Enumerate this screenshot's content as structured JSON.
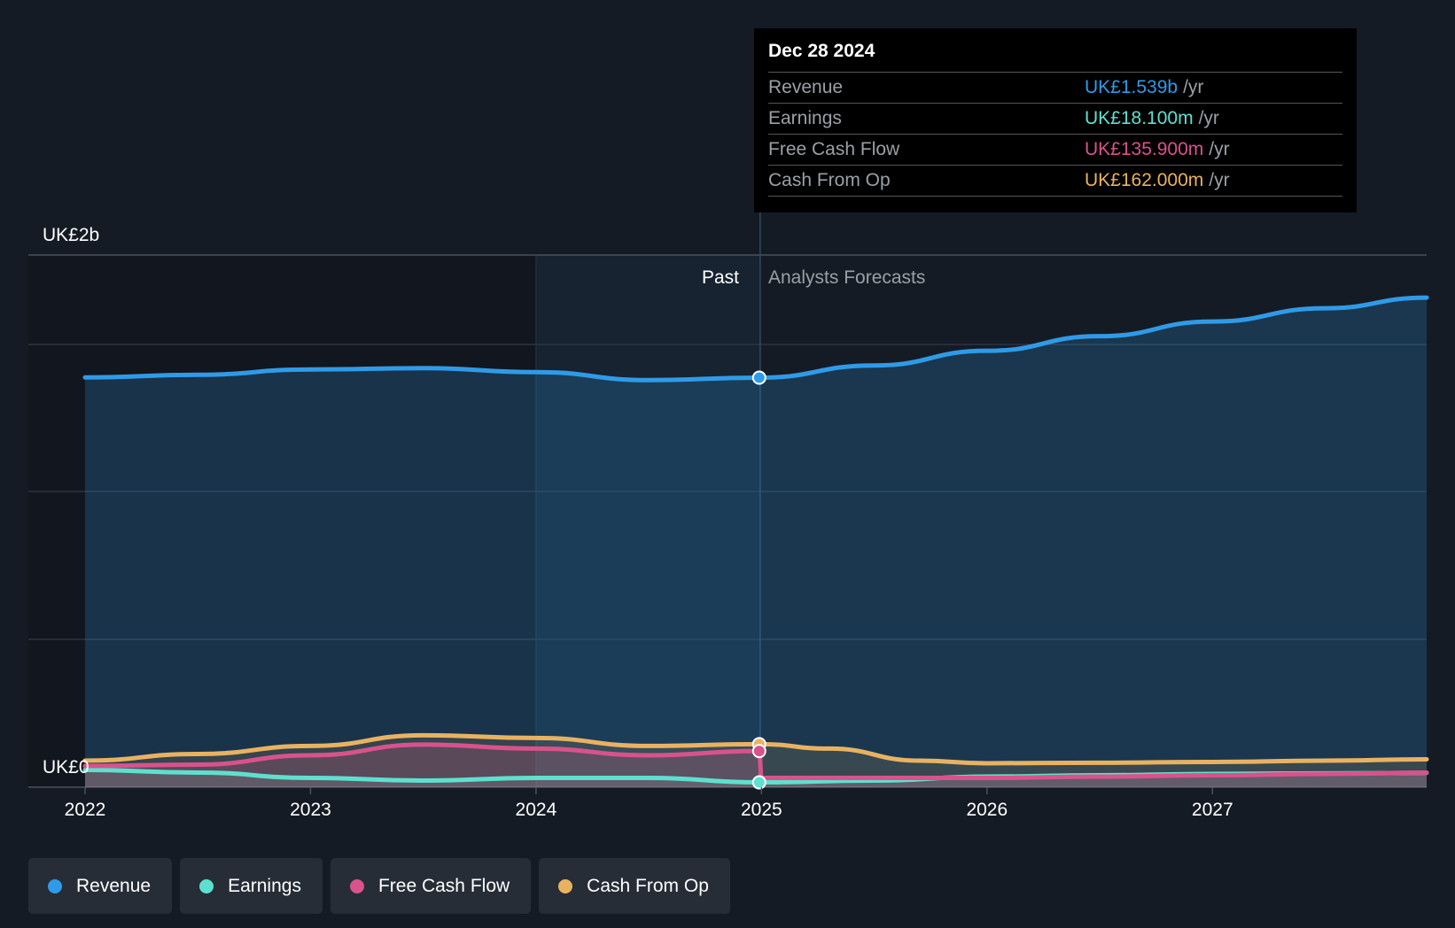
{
  "tooltip": {
    "date": "Dec 28 2024",
    "rows": [
      {
        "label": "Revenue",
        "value": "UK£1.539b",
        "unit": "/yr",
        "color": "#2f9be8"
      },
      {
        "label": "Earnings",
        "value": "UK£18.100m",
        "unit": "/yr",
        "color": "#5ee0cf"
      },
      {
        "label": "Free Cash Flow",
        "value": "UK£135.900m",
        "unit": "/yr",
        "color": "#d9528c"
      },
      {
        "label": "Cash From Op",
        "value": "UK£162.000m",
        "unit": "/yr",
        "color": "#e9b261"
      }
    ]
  },
  "chart_data": {
    "type": "line",
    "y_top_label": "UK£2b",
    "y_bottom_label": "UK£0",
    "ylim": [
      0,
      1.8
    ],
    "xlim": [
      2021.75,
      2027.95
    ],
    "x_ticks": [
      "2022",
      "2023",
      "2024",
      "2025",
      "2026",
      "2027"
    ],
    "past_label": "Past",
    "forecast_label": "Analysts Forecasts",
    "divider_x": 2024.99,
    "highlight_start_x": 2024.0,
    "series": [
      {
        "name": "Revenue",
        "color": "#2f9be8",
        "x": [
          2022.0,
          2022.5,
          2023.0,
          2023.5,
          2024.0,
          2024.5,
          2024.99,
          2025.5,
          2026.0,
          2026.5,
          2027.0,
          2027.5,
          2027.95
        ],
        "y": [
          1.54,
          1.55,
          1.57,
          1.575,
          1.56,
          1.53,
          1.539,
          1.585,
          1.64,
          1.695,
          1.75,
          1.8,
          1.84
        ]
      },
      {
        "name": "Earnings",
        "color": "#5ee0cf",
        "x": [
          2022.0,
          2022.5,
          2023.0,
          2023.5,
          2024.0,
          2024.5,
          2024.99,
          2025.5,
          2026.0,
          2026.5,
          2027.0,
          2027.5,
          2027.95
        ],
        "y": [
          0.065,
          0.055,
          0.035,
          0.025,
          0.035,
          0.035,
          0.0181,
          0.025,
          0.04,
          0.045,
          0.05,
          0.052,
          0.054
        ]
      },
      {
        "name": "Free Cash Flow",
        "color": "#d9528c",
        "x": [
          2022.0,
          2022.5,
          2023.0,
          2023.5,
          2024.0,
          2024.5,
          2024.99,
          2025.0,
          2025.5,
          2026.0,
          2026.5,
          2027.0,
          2027.5,
          2027.95
        ],
        "y": [
          0.08,
          0.085,
          0.12,
          0.16,
          0.145,
          0.12,
          0.1359,
          0.035,
          0.035,
          0.035,
          0.04,
          0.045,
          0.05,
          0.055
        ]
      },
      {
        "name": "Cash From Op",
        "color": "#e9b261",
        "x": [
          2022.0,
          2022.5,
          2023.0,
          2023.5,
          2024.0,
          2024.5,
          2024.99,
          2025.3,
          2025.7,
          2026.0,
          2026.5,
          2027.0,
          2027.5,
          2027.95
        ],
        "y": [
          0.1,
          0.125,
          0.155,
          0.195,
          0.185,
          0.155,
          0.162,
          0.145,
          0.1,
          0.09,
          0.092,
          0.095,
          0.1,
          0.105
        ]
      }
    ],
    "highlight_points": [
      {
        "series": "Revenue",
        "x": 2024.99,
        "y": 1.539
      },
      {
        "series": "Cash From Op",
        "x": 2024.99,
        "y": 0.162
      },
      {
        "series": "Free Cash Flow",
        "x": 2024.99,
        "y": 0.1359
      },
      {
        "series": "Earnings",
        "x": 2024.99,
        "y": 0.0181
      }
    ]
  },
  "legend": [
    {
      "label": "Revenue",
      "color": "#2f9be8"
    },
    {
      "label": "Earnings",
      "color": "#5ee0cf"
    },
    {
      "label": "Free Cash Flow",
      "color": "#d9528c"
    },
    {
      "label": "Cash From Op",
      "color": "#e9b261"
    }
  ]
}
